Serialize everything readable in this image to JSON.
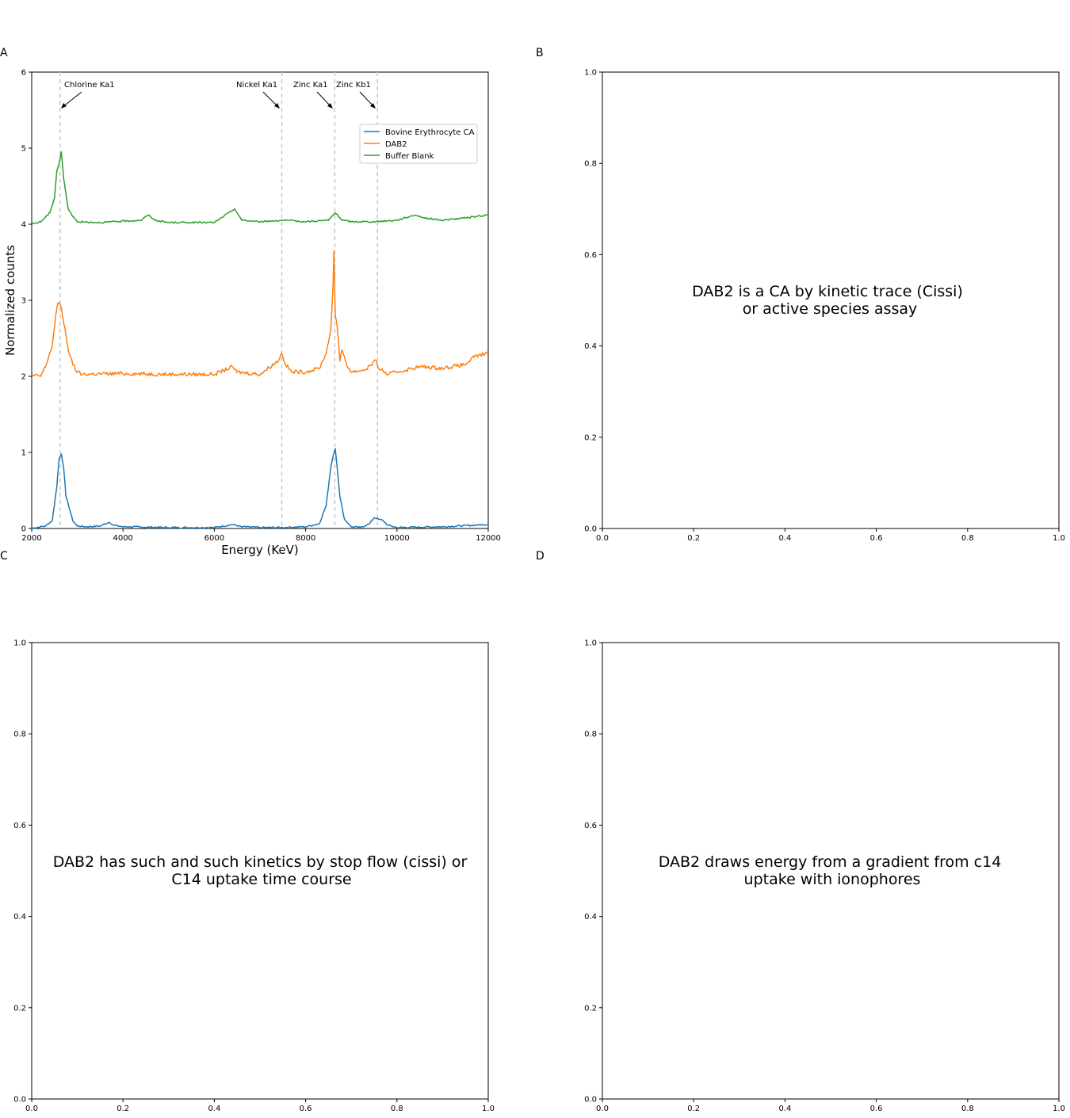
{
  "chart_data": [
    {
      "panel": "A",
      "type": "line",
      "xlabel": "Energy (KeV)",
      "ylabel": "Normalized counts",
      "xlim": [
        2000,
        12000
      ],
      "ylim": [
        0,
        6
      ],
      "xticks": [
        "2000",
        "4000",
        "6000",
        "8000",
        "10000",
        "12000"
      ],
      "yticks": [
        "0",
        "1",
        "2",
        "3",
        "4",
        "5",
        "6"
      ],
      "legend_position": "upper-right",
      "grid": false,
      "reference_lines": [
        {
          "label": "Chlorine Ka1",
          "x": 2622
        },
        {
          "label": "Nickel Ka1",
          "x": 7478
        },
        {
          "label": "Zinc Ka1",
          "x": 8639
        },
        {
          "label": "Zinc Kb1",
          "x": 9572
        }
      ],
      "series": [
        {
          "name": "Bovine Erythrocyte CA",
          "color": "#1f77b4",
          "x": [
            2000,
            2300,
            2450,
            2550,
            2600,
            2650,
            2700,
            2750,
            2800,
            2900,
            3000,
            3200,
            3500,
            3700,
            3800,
            4000,
            5000,
            6000,
            6400,
            6600,
            7000,
            7500,
            8000,
            8300,
            8450,
            8550,
            8600,
            8650,
            8700,
            8750,
            8850,
            9000,
            9200,
            9400,
            9500,
            9600,
            9700,
            9800,
            10000,
            11000,
            12000
          ],
          "y": [
            0.0,
            0.03,
            0.1,
            0.55,
            0.92,
            0.98,
            0.8,
            0.42,
            0.32,
            0.1,
            0.03,
            0.02,
            0.03,
            0.08,
            0.04,
            0.02,
            0.01,
            0.01,
            0.05,
            0.02,
            0.01,
            0.01,
            0.02,
            0.06,
            0.3,
            0.8,
            0.95,
            1.05,
            0.75,
            0.42,
            0.12,
            0.02,
            0.01,
            0.06,
            0.14,
            0.12,
            0.1,
            0.04,
            0.01,
            0.02,
            0.05
          ]
        },
        {
          "name": "DAB2",
          "color": "#ff7f0e",
          "x": [
            2000,
            2200,
            2300,
            2450,
            2550,
            2600,
            2650,
            2700,
            2750,
            2800,
            2900,
            3000,
            3100,
            4000,
            5000,
            6000,
            6400,
            6500,
            7000,
            7400,
            7480,
            7560,
            7700,
            8000,
            8300,
            8450,
            8550,
            8600,
            8620,
            8650,
            8700,
            8750,
            8800,
            8900,
            9000,
            9300,
            9550,
            9600,
            9800,
            10000,
            10500,
            11000,
            11500,
            11700,
            12000
          ],
          "y": [
            2.0,
            2.0,
            2.12,
            2.4,
            2.9,
            2.97,
            2.9,
            2.7,
            2.55,
            2.35,
            2.15,
            2.05,
            2.02,
            2.03,
            2.02,
            2.02,
            2.12,
            2.05,
            2.02,
            2.2,
            2.3,
            2.15,
            2.05,
            2.05,
            2.1,
            2.3,
            2.6,
            3.2,
            3.65,
            2.8,
            2.6,
            2.2,
            2.35,
            2.15,
            2.05,
            2.08,
            2.2,
            2.1,
            2.02,
            2.05,
            2.12,
            2.1,
            2.15,
            2.25,
            2.3
          ]
        },
        {
          "name": "Buffer Blank",
          "color": "#2ca02c",
          "x": [
            2000,
            2200,
            2400,
            2500,
            2550,
            2600,
            2650,
            2700,
            2750,
            2800,
            2900,
            3000,
            3500,
            4400,
            4550,
            4700,
            5000,
            6000,
            6400,
            6450,
            6600,
            7000,
            7500,
            8000,
            8500,
            8650,
            8800,
            9000,
            9500,
            10000,
            10400,
            10600,
            11000,
            11500,
            12000
          ],
          "y": [
            4.0,
            4.03,
            4.15,
            4.35,
            4.7,
            4.8,
            4.95,
            4.6,
            4.4,
            4.2,
            4.1,
            4.03,
            4.02,
            4.05,
            4.12,
            4.05,
            4.02,
            4.02,
            4.18,
            4.2,
            4.05,
            4.03,
            4.05,
            4.03,
            4.05,
            4.15,
            4.05,
            4.03,
            4.03,
            4.05,
            4.12,
            4.08,
            4.05,
            4.08,
            4.12
          ]
        }
      ]
    },
    {
      "panel": "B",
      "type": "line",
      "xlim": [
        0.0,
        1.0
      ],
      "ylim": [
        0.0,
        1.0
      ],
      "xticks": [
        "0.0",
        "0.2",
        "0.4",
        "0.6",
        "0.8",
        "1.0"
      ],
      "yticks": [
        "0.0",
        "0.2",
        "0.4",
        "0.6",
        "0.8",
        "1.0"
      ],
      "annotation": [
        "DAB2 is a CA by kinetic trace (Cissi)",
        "or active species assay"
      ],
      "series": []
    },
    {
      "panel": "C",
      "type": "line",
      "xlim": [
        0.0,
        1.0
      ],
      "ylim": [
        0.0,
        1.0
      ],
      "xticks": [
        "0.0",
        "0.2",
        "0.4",
        "0.6",
        "0.8",
        "1.0"
      ],
      "yticks": [
        "0.0",
        "0.2",
        "0.4",
        "0.6",
        "0.8",
        "1.0"
      ],
      "annotation": [
        "DAB2 has such and such kinetics by stop flow (cissi) or",
        "C14 uptake time course"
      ],
      "series": []
    },
    {
      "panel": "D",
      "type": "line",
      "xlim": [
        0.0,
        1.0
      ],
      "ylim": [
        0.0,
        1.0
      ],
      "xticks": [
        "0.0",
        "0.2",
        "0.4",
        "0.6",
        "0.8",
        "1.0"
      ],
      "yticks": [
        "0.0",
        "0.2",
        "0.4",
        "0.6",
        "0.8",
        "1.0"
      ],
      "annotation": [
        "DAB2 draws energy from a gradient from c14",
        "uptake with ionophores"
      ],
      "series": []
    }
  ]
}
